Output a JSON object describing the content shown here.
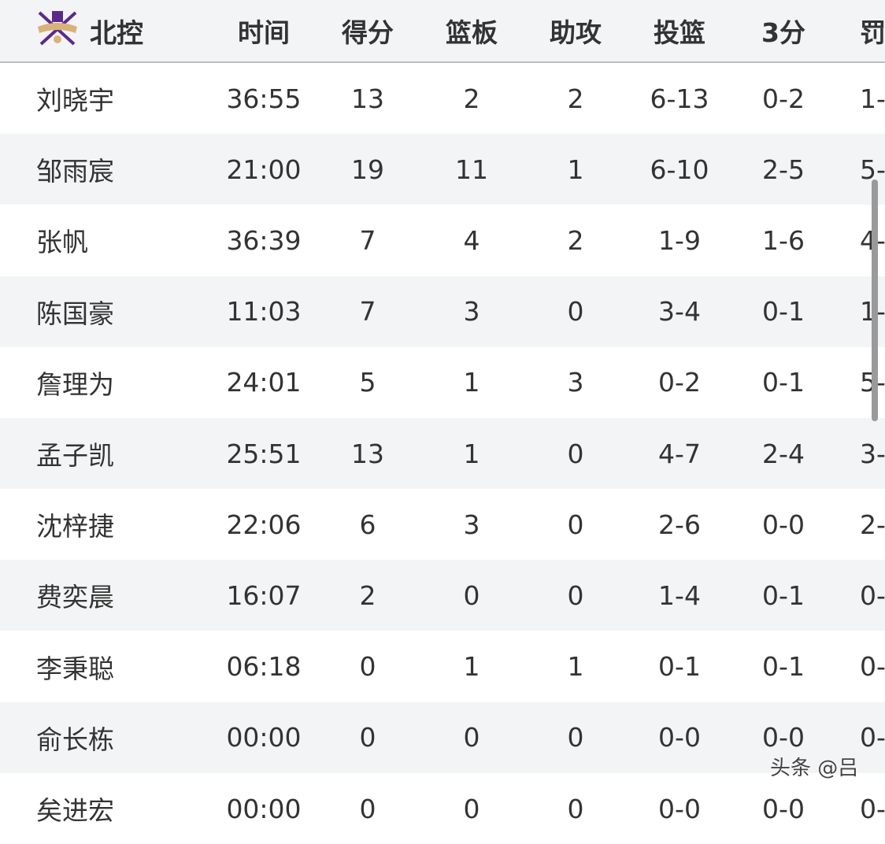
{
  "header": {
    "team": "北控",
    "logo": "beikong-team-logo",
    "columns": [
      "时间",
      "得分",
      "篮板",
      "助攻",
      "投篮",
      "3分",
      "罚"
    ]
  },
  "rows": [
    {
      "name": "刘晓宇",
      "min": "36:55",
      "pts": "13",
      "reb": "2",
      "ast": "2",
      "fg": "6-13",
      "tp": "0-2",
      "ft": "1-"
    },
    {
      "name": "邹雨宸",
      "min": "21:00",
      "pts": "19",
      "reb": "11",
      "ast": "1",
      "fg": "6-10",
      "tp": "2-5",
      "ft": "5-"
    },
    {
      "name": "张帆",
      "min": "36:39",
      "pts": "7",
      "reb": "4",
      "ast": "2",
      "fg": "1-9",
      "tp": "1-6",
      "ft": "4-"
    },
    {
      "name": "陈国豪",
      "min": "11:03",
      "pts": "7",
      "reb": "3",
      "ast": "0",
      "fg": "3-4",
      "tp": "0-1",
      "ft": "1-"
    },
    {
      "name": "詹理为",
      "min": "24:01",
      "pts": "5",
      "reb": "1",
      "ast": "3",
      "fg": "0-2",
      "tp": "0-1",
      "ft": "5-"
    },
    {
      "name": "孟子凯",
      "min": "25:51",
      "pts": "13",
      "reb": "1",
      "ast": "0",
      "fg": "4-7",
      "tp": "2-4",
      "ft": "3-"
    },
    {
      "name": "沈梓捷",
      "min": "22:06",
      "pts": "6",
      "reb": "3",
      "ast": "0",
      "fg": "2-6",
      "tp": "0-0",
      "ft": "2-"
    },
    {
      "name": "费奕晨",
      "min": "16:07",
      "pts": "2",
      "reb": "0",
      "ast": "0",
      "fg": "1-4",
      "tp": "0-1",
      "ft": "0-"
    },
    {
      "name": "李秉聪",
      "min": "06:18",
      "pts": "0",
      "reb": "1",
      "ast": "1",
      "fg": "0-1",
      "tp": "0-1",
      "ft": "0-"
    },
    {
      "name": "俞长栋",
      "min": "00:00",
      "pts": "0",
      "reb": "0",
      "ast": "0",
      "fg": "0-0",
      "tp": "0-0",
      "ft": "0-"
    },
    {
      "name": "矣进宏",
      "min": "00:00",
      "pts": "0",
      "reb": "0",
      "ast": "0",
      "fg": "0-0",
      "tp": "0-0",
      "ft": "0-"
    }
  ],
  "watermark": "头条 @吕"
}
